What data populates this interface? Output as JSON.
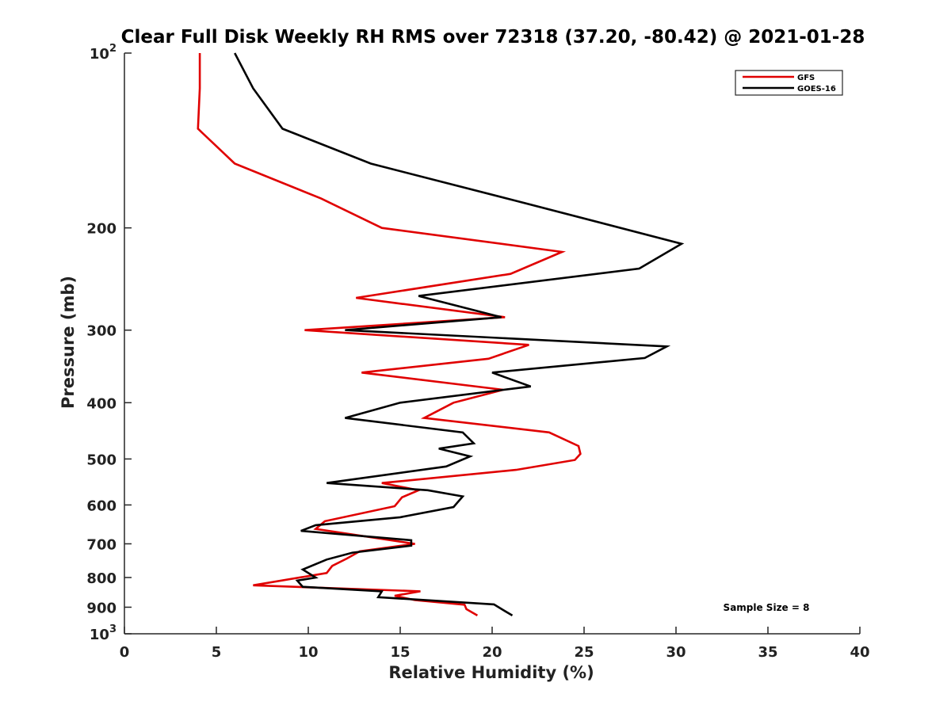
{
  "chart_data": {
    "type": "line",
    "title": "Clear Full Disk Weekly RH RMS over 72318 (37.20, -80.42) @ 2021-01-28",
    "xlabel": "Relative Humidity (%)",
    "ylabel": "Pressure (mb)",
    "xlim": [
      0,
      40
    ],
    "ylim": [
      100,
      1000
    ],
    "y_scale": "log",
    "y_reversed": true,
    "grid": false,
    "legend_position": "top-right",
    "x_ticks": [
      0,
      5,
      10,
      15,
      20,
      25,
      30,
      35,
      40
    ],
    "x_tick_labels": [
      "0",
      "5",
      "10",
      "15",
      "20",
      "25",
      "30",
      "35",
      "40"
    ],
    "y_ticks": [
      100,
      200,
      300,
      400,
      500,
      600,
      700,
      800,
      900,
      1000
    ],
    "y_tick_labels": [
      {
        "base": "10",
        "exp": "2"
      },
      {
        "base": "200",
        "exp": ""
      },
      {
        "base": "300",
        "exp": ""
      },
      {
        "base": "400",
        "exp": ""
      },
      {
        "base": "500",
        "exp": ""
      },
      {
        "base": "600",
        "exp": ""
      },
      {
        "base": "700",
        "exp": ""
      },
      {
        "base": "800",
        "exp": ""
      },
      {
        "base": "900",
        "exp": ""
      },
      {
        "base": "10",
        "exp": "3"
      }
    ],
    "annotation": "Sample Size = 8",
    "series": [
      {
        "name": "GFS",
        "color": "#e00000",
        "points": [
          [
            4.1,
            100
          ],
          [
            4.1,
            115
          ],
          [
            4.0,
            135
          ],
          [
            6.0,
            155
          ],
          [
            10.7,
            178
          ],
          [
            14.0,
            200
          ],
          [
            23.8,
            220
          ],
          [
            21.0,
            240
          ],
          [
            12.6,
            264
          ],
          [
            20.7,
            285
          ],
          [
            9.8,
            300
          ],
          [
            22.0,
            318
          ],
          [
            19.8,
            336
          ],
          [
            12.9,
            355
          ],
          [
            20.6,
            380
          ],
          [
            17.9,
            400
          ],
          [
            16.3,
            425
          ],
          [
            23.1,
            450
          ],
          [
            24.7,
            475
          ],
          [
            24.8,
            490
          ],
          [
            24.5,
            502
          ],
          [
            21.3,
            522
          ],
          [
            14.0,
            550
          ],
          [
            16.0,
            566
          ],
          [
            15.1,
            582
          ],
          [
            14.7,
            603
          ],
          [
            10.9,
            640
          ],
          [
            10.4,
            660
          ],
          [
            15.8,
            700
          ],
          [
            12.8,
            721
          ],
          [
            12.1,
            742
          ],
          [
            11.3,
            764
          ],
          [
            11.0,
            786
          ],
          [
            7.0,
            825
          ],
          [
            16.1,
            845
          ],
          [
            14.7,
            860
          ],
          [
            15.8,
            875
          ],
          [
            18.5,
            891
          ],
          [
            18.6,
            907
          ],
          [
            19.2,
            930
          ]
        ]
      },
      {
        "name": "GOES-16",
        "color": "#000000",
        "points": [
          [
            6.0,
            100
          ],
          [
            7.0,
            115
          ],
          [
            8.6,
            135
          ],
          [
            13.4,
            155
          ],
          [
            21.4,
            180
          ],
          [
            30.3,
            213
          ],
          [
            28.0,
            235
          ],
          [
            16.0,
            262
          ],
          [
            20.5,
            285
          ],
          [
            12.0,
            300
          ],
          [
            29.5,
            320
          ],
          [
            28.3,
            335
          ],
          [
            20.0,
            355
          ],
          [
            22.1,
            375
          ],
          [
            15.0,
            400
          ],
          [
            12.0,
            425
          ],
          [
            18.4,
            450
          ],
          [
            19.0,
            470
          ],
          [
            17.1,
            480
          ],
          [
            18.8,
            495
          ],
          [
            17.5,
            515
          ],
          [
            11.0,
            550
          ],
          [
            16.5,
            566
          ],
          [
            18.4,
            580
          ],
          [
            17.9,
            605
          ],
          [
            15.0,
            630
          ],
          [
            10.4,
            650
          ],
          [
            9.6,
            665
          ],
          [
            15.6,
            690
          ],
          [
            15.6,
            705
          ],
          [
            12.4,
            725
          ],
          [
            11.0,
            745
          ],
          [
            9.7,
            775
          ],
          [
            10.4,
            800
          ],
          [
            9.4,
            810
          ],
          [
            9.7,
            830
          ],
          [
            14.0,
            845
          ],
          [
            13.8,
            865
          ],
          [
            20.1,
            890
          ],
          [
            20.6,
            910
          ],
          [
            21.1,
            930
          ]
        ]
      }
    ]
  }
}
